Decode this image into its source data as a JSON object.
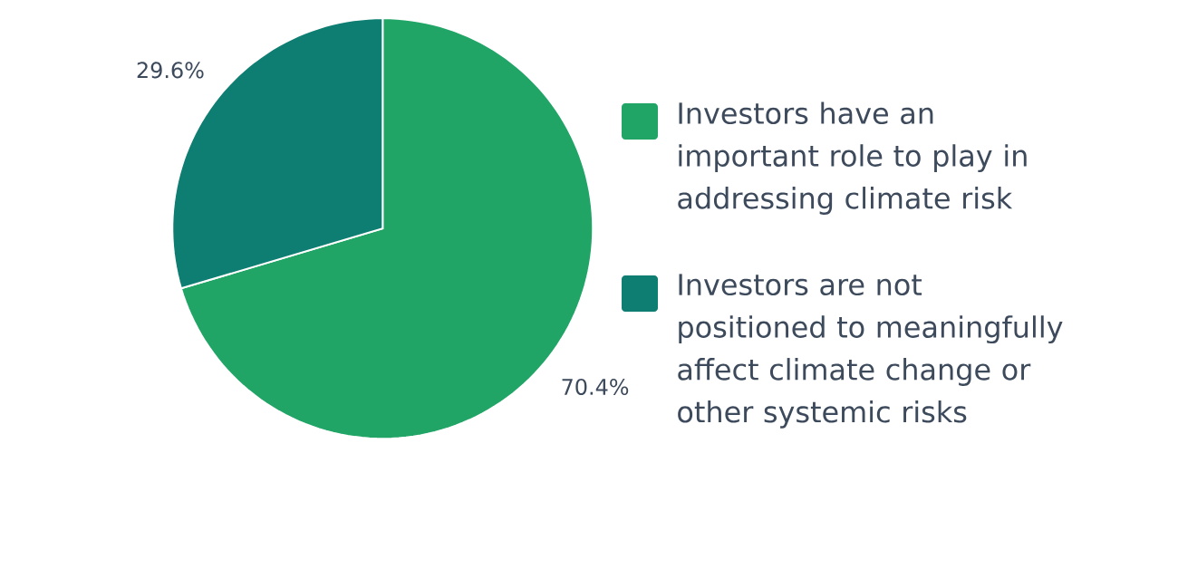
{
  "chart_data": {
    "type": "pie",
    "categories": [
      "Investors have an important role to play in addressing climate risk",
      "Investors are not positioned to meaningfully affect climate change or other systemic risks"
    ],
    "values": [
      70.4,
      29.6
    ],
    "value_labels": [
      "70.4%",
      "29.6%"
    ],
    "colors": [
      "#21a566",
      "#0e7d72"
    ],
    "legend": "right"
  }
}
